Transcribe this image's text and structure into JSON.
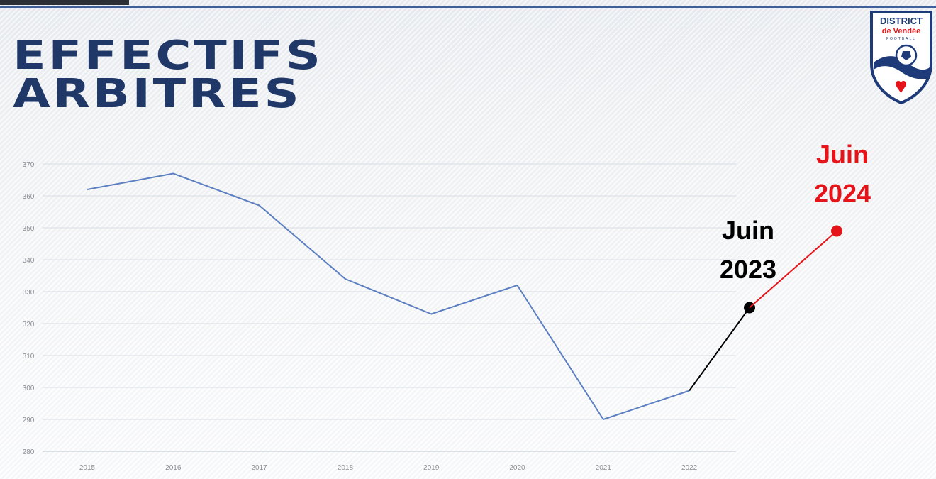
{
  "header": {
    "title_line1": "EFFECTIFS",
    "title_line2": "ARBITRES"
  },
  "logo": {
    "line1": "DISTRICT",
    "line2": "de Vendée",
    "line3": "FOOTBALL",
    "icon": "shield-football-icon"
  },
  "chart_data": {
    "type": "line",
    "categories": [
      "2015",
      "2016",
      "2017",
      "2018",
      "2019",
      "2020",
      "2021",
      "2022"
    ],
    "series": [
      {
        "values": [
          362,
          367,
          357,
          334,
          323,
          332,
          290,
          299
        ],
        "color": "#5b7fc0"
      }
    ],
    "extensions": [
      {
        "label_line1": "Juin",
        "label_line2": "2023",
        "value": 325,
        "color": "#000000"
      },
      {
        "label_line1": "Juin",
        "label_line2": "2024",
        "value": 349,
        "color": "#e5141a"
      }
    ],
    "yticks": [
      280,
      290,
      300,
      310,
      320,
      330,
      340,
      350,
      360,
      370
    ],
    "ylim": [
      280,
      370
    ],
    "grid": true,
    "title": "EFFECTIFS ARBITRES",
    "xlabel": "",
    "ylabel": ""
  }
}
